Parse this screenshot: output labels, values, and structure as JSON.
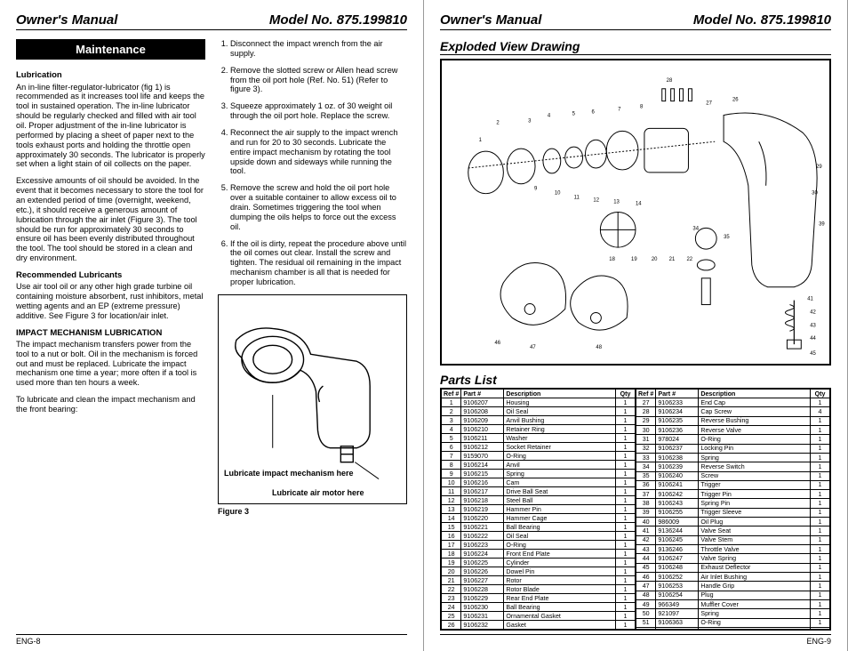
{
  "header": {
    "owner": "Owner's Manual",
    "model_label": "Model No.",
    "model_no": "875.199810"
  },
  "footer": {
    "left": "ENG-8",
    "right": "ENG-9"
  },
  "left_page": {
    "banner": "Maintenance",
    "lub_title": "Lubrication",
    "lub_p1": "An in-line filter-regulator-lubricator (fig 1) is recommended as it increases tool life and keeps the tool in sustained operation. The in-line lubricator should be regularly checked and filled with air tool oil. Proper adjustment of the in-line lubricator is performed by placing a sheet of paper next to the tools exhaust ports and holding the throttle open approximately 30 seconds. The lubricator is properly set when a light stain of oil collects on the paper.",
    "lub_p2": "Excessive amounts of oil should be avoided. In the event that it becomes necessary to store the tool for an extended period of time (overnight, weekend, etc.), it should receive a generous amount of lubrication through the air inlet (Figure 3). The tool should be run for approximately 30 seconds to ensure oil has been evenly distributed throughout the tool. The tool should be stored in a clean and dry environment.",
    "rec_title": "Recommended Lubricants",
    "rec_p": "Use air tool oil or any other high grade turbine oil containing moisture absorbent, rust inhibitors, metal wetting agents and an EP (extreme pressure) additive. See Figure 3 for location/air inlet.",
    "imp_title": "IMPACT MECHANISM LUBRICATION",
    "imp_p1": "The impact mechanism transfers power from the tool to a nut or bolt. Oil in the mechanism is forced out and must be replaced. Lubricate the impact mechanism one time a year; more often if a tool is used more than ten hours a week.",
    "imp_p2": "To lubricate and clean the impact mechanism and the front bearing:",
    "steps": [
      "Disconnect the impact wrench from the air supply.",
      "Remove the slotted screw or Allen head screw from the oil port hole (Ref. No. 51) (Refer to figure 3).",
      "Squeeze approximately 1 oz. of 30 weight oil through the oil port hole. Replace the screw.",
      "Reconnect the air supply to the impact wrench and run for 20 to 30 seconds. Lubricate the entire impact mechanism by rotating the tool upside down and sideways while running the tool.",
      "Remove the screw and hold the oil port hole over a suitable container to allow excess oil to drain. Sometimes triggering the tool when dumping the oils helps to force out the excess oil.",
      "If the oil is dirty, repeat the procedure above until the oil comes out clear. Install the screw and tighten. The residual oil remaining in the impact mechanism chamber is all that is needed for proper lubrication."
    ],
    "fig_lube_impact": "Lubricate impact mechanism here",
    "fig_lube_air": "Lubricate air motor here",
    "fig_caption": "Figure 3"
  },
  "right_page": {
    "exploded_title": "Exploded View Drawing",
    "parts_list_title": "Parts List",
    "cols": {
      "ref": "Ref #",
      "part": "Part #",
      "desc": "Description",
      "qty": "Qty"
    },
    "parts_left": [
      {
        "r": "1",
        "p": "9106207",
        "d": "Housing",
        "q": "1"
      },
      {
        "r": "2",
        "p": "9106208",
        "d": "Oil Seal",
        "q": "1"
      },
      {
        "r": "3",
        "p": "9106209",
        "d": "Anvil Bushing",
        "q": "1"
      },
      {
        "r": "4",
        "p": "9106210",
        "d": "Retainer Ring",
        "q": "1"
      },
      {
        "r": "5",
        "p": "9106211",
        "d": "Washer",
        "q": "1"
      },
      {
        "r": "6",
        "p": "9106212",
        "d": "Socket Retainer",
        "q": "1"
      },
      {
        "r": "7",
        "p": "9159070",
        "d": "O-Ring",
        "q": "1"
      },
      {
        "r": "8",
        "p": "9106214",
        "d": "Anvil",
        "q": "1"
      },
      {
        "r": "9",
        "p": "9106215",
        "d": "Spring",
        "q": "1"
      },
      {
        "r": "10",
        "p": "9106216",
        "d": "Cam",
        "q": "1"
      },
      {
        "r": "11",
        "p": "9106217",
        "d": "Drive Ball Seat",
        "q": "1"
      },
      {
        "r": "12",
        "p": "9106218",
        "d": "Steel Ball",
        "q": "1"
      },
      {
        "r": "13",
        "p": "9106219",
        "d": "Hammer Pin",
        "q": "1"
      },
      {
        "r": "14",
        "p": "9106220",
        "d": "Hammer Cage",
        "q": "1"
      },
      {
        "r": "15",
        "p": "9106221",
        "d": "Ball Bearing",
        "q": "1"
      },
      {
        "r": "16",
        "p": "9106222",
        "d": "Oil Seal",
        "q": "1"
      },
      {
        "r": "17",
        "p": "9106223",
        "d": "O-Ring",
        "q": "1"
      },
      {
        "r": "18",
        "p": "9106224",
        "d": "Front End Plate",
        "q": "1"
      },
      {
        "r": "19",
        "p": "9106225",
        "d": "Cylinder",
        "q": "1"
      },
      {
        "r": "20",
        "p": "9106226",
        "d": "Dowel Pin",
        "q": "1"
      },
      {
        "r": "21",
        "p": "9106227",
        "d": "Rotor",
        "q": "1"
      },
      {
        "r": "22",
        "p": "9106228",
        "d": "Rotor Blade",
        "q": "1"
      },
      {
        "r": "23",
        "p": "9106229",
        "d": "Rear End Plate",
        "q": "1"
      },
      {
        "r": "24",
        "p": "9106230",
        "d": "Ball Bearing",
        "q": "1"
      },
      {
        "r": "25",
        "p": "9106231",
        "d": "Ornamental Gasket",
        "q": "1"
      },
      {
        "r": "26",
        "p": "9106232",
        "d": "Gasket",
        "q": "1"
      }
    ],
    "parts_right": [
      {
        "r": "27",
        "p": "9106233",
        "d": "End Cap",
        "q": "1"
      },
      {
        "r": "28",
        "p": "9106234",
        "d": "Cap Screw",
        "q": "4"
      },
      {
        "r": "29",
        "p": "9106235",
        "d": "Reverse Bushing",
        "q": "1"
      },
      {
        "r": "30",
        "p": "9106236",
        "d": "Reverse Valve",
        "q": "1"
      },
      {
        "r": "31",
        "p": "978024",
        "d": "O-Ring",
        "q": "1"
      },
      {
        "r": "32",
        "p": "9106237",
        "d": "Locking Pin",
        "q": "1"
      },
      {
        "r": "33",
        "p": "9106238",
        "d": "Spring",
        "q": "1"
      },
      {
        "r": "34",
        "p": "9106239",
        "d": "Reverse Switch",
        "q": "1"
      },
      {
        "r": "35",
        "p": "9106240",
        "d": "Screw",
        "q": "1"
      },
      {
        "r": "36",
        "p": "9106241",
        "d": "Trigger",
        "q": "1"
      },
      {
        "r": "37",
        "p": "9106242",
        "d": "Trigger Pin",
        "q": "1"
      },
      {
        "r": "38",
        "p": "9106243",
        "d": "Spring Pin",
        "q": "1"
      },
      {
        "r": "39",
        "p": "9106255",
        "d": "Trigger Sleeve",
        "q": "1"
      },
      {
        "r": "40",
        "p": "986009",
        "d": "Oil Plug",
        "q": "1"
      },
      {
        "r": "41",
        "p": "9136244",
        "d": "Valve Seat",
        "q": "1"
      },
      {
        "r": "42",
        "p": "9106245",
        "d": "Valve Stem",
        "q": "1"
      },
      {
        "r": "43",
        "p": "9136246",
        "d": "Throttle Valve",
        "q": "1"
      },
      {
        "r": "44",
        "p": "9106247",
        "d": "Valve Spring",
        "q": "1"
      },
      {
        "r": "45",
        "p": "9106248",
        "d": "Exhaust Deflector",
        "q": "1"
      },
      {
        "r": "46",
        "p": "9106252",
        "d": "Air Inlet Bushing",
        "q": "1"
      },
      {
        "r": "47",
        "p": "9106253",
        "d": "Handle Grip",
        "q": "1"
      },
      {
        "r": "48",
        "p": "9106254",
        "d": "Plug",
        "q": "1"
      },
      {
        "r": "49",
        "p": "966349",
        "d": "Muffler Cover",
        "q": "1"
      },
      {
        "r": "50",
        "p": "921097",
        "d": "Spring",
        "q": "1"
      },
      {
        "r": "51",
        "p": "9106363",
        "d": "O-Ring",
        "q": "1"
      },
      {
        "r": "",
        "p": "",
        "d": "",
        "q": ""
      }
    ]
  }
}
